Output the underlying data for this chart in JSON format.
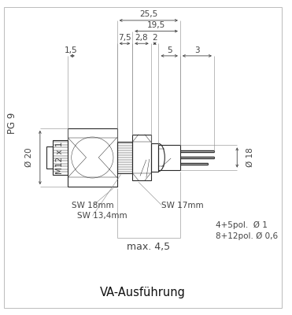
{
  "bg_color": "#ffffff",
  "lc": "#2a2a2a",
  "dc": "#444444",
  "ext_lc": "#888888",
  "title": "VA-Ausführung",
  "labels": {
    "pg9": "PG 9",
    "d20": "Ø 20",
    "d18": "Ø 18",
    "m12x1": "M12 x 1",
    "sw18": "SW 18mm",
    "sw134": "SW 13,4mm",
    "sw17": "SW 17mm",
    "max45": "max. 4,5",
    "pol45": "4+5pol.  Ø 1",
    "pol812": "8+12pol. Ø 0,6"
  },
  "dims": {
    "255": "25,5",
    "195": "19,5",
    "28": "2,8",
    "2": "2",
    "75": "7,5",
    "15": "1,5",
    "5": "5",
    "3": "3"
  }
}
